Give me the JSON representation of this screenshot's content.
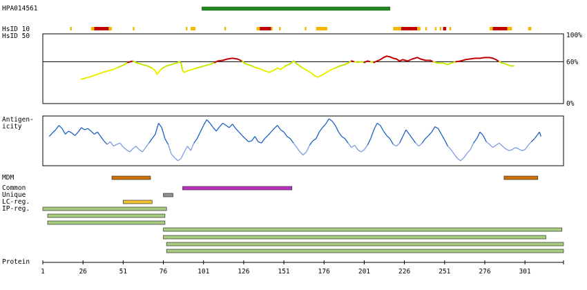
{
  "antibody_id": "HPA014561",
  "labels": {
    "hsid10": "HsID 10",
    "hsid50": "HsID 50",
    "antigenicity_line1": "Antigen-",
    "antigenicity_line2": "icity",
    "mdm": "MDM",
    "common": "Common",
    "unique": "Unique",
    "lc_reg": "LC-reg.",
    "ip_reg": "IP-reg.",
    "protein": "Protein"
  },
  "identity_axis": {
    "top": "100%",
    "mid": "60%",
    "bottom": "0%"
  },
  "protein_axis": {
    "ticks": [
      "1",
      "26",
      "51",
      "76",
      "101",
      "126",
      "151",
      "176",
      "201",
      "226",
      "251",
      "276",
      "301"
    ],
    "tick_positions": [
      1,
      26,
      51,
      76,
      101,
      126,
      151,
      176,
      201,
      226,
      251,
      276,
      301
    ],
    "length": 325
  },
  "colors": {
    "antibody_bar": "#1f8a1f",
    "identity_low": "#e8f000",
    "identity_high": "#c00000",
    "antigenicity": "#1a5fc0",
    "antigenicity_light": "#7a9ae0",
    "mdm": "#d07000",
    "common": "#c030c0",
    "unique": "#909090",
    "lc_reg": "#f0c030",
    "ip_reg": "#a8cc80"
  },
  "antibody_range": [
    100,
    217
  ],
  "hsid10_segments": [
    {
      "start": 18,
      "end": 19,
      "c": "orange"
    },
    {
      "start": 31,
      "end": 33,
      "c": "orange"
    },
    {
      "start": 33,
      "end": 42,
      "c": "red"
    },
    {
      "start": 42,
      "end": 44,
      "c": "orange"
    },
    {
      "start": 57,
      "end": 58,
      "c": "orange"
    },
    {
      "start": 90,
      "end": 91,
      "c": "orange"
    },
    {
      "start": 93,
      "end": 96,
      "c": "orange"
    },
    {
      "start": 114,
      "end": 115,
      "c": "orange"
    },
    {
      "start": 134,
      "end": 136,
      "c": "orange"
    },
    {
      "start": 136,
      "end": 143,
      "c": "red"
    },
    {
      "start": 143,
      "end": 144,
      "c": "orange"
    },
    {
      "start": 148,
      "end": 149,
      "c": "orange"
    },
    {
      "start": 164,
      "end": 165,
      "c": "orange"
    },
    {
      "start": 171,
      "end": 178,
      "c": "orange"
    },
    {
      "start": 219,
      "end": 224,
      "c": "orange"
    },
    {
      "start": 224,
      "end": 234,
      "c": "red"
    },
    {
      "start": 234,
      "end": 236,
      "c": "orange"
    },
    {
      "start": 239,
      "end": 240,
      "c": "orange"
    },
    {
      "start": 245,
      "end": 246,
      "c": "orange"
    },
    {
      "start": 248,
      "end": 249,
      "c": "orange"
    },
    {
      "start": 250,
      "end": 252,
      "c": "red"
    },
    {
      "start": 254,
      "end": 255,
      "c": "orange"
    },
    {
      "start": 279,
      "end": 281,
      "c": "orange"
    },
    {
      "start": 281,
      "end": 290,
      "c": "red"
    },
    {
      "start": 290,
      "end": 293,
      "c": "orange"
    },
    {
      "start": 303,
      "end": 305,
      "c": "orange"
    }
  ],
  "identity_profile": [
    [
      25,
      35
    ],
    [
      30,
      38
    ],
    [
      35,
      42
    ],
    [
      40,
      46
    ],
    [
      45,
      49
    ],
    [
      48,
      52
    ],
    [
      51,
      55
    ],
    [
      54,
      59
    ],
    [
      57,
      61
    ],
    [
      60,
      58
    ],
    [
      63,
      56
    ],
    [
      66,
      54
    ],
    [
      69,
      51
    ],
    [
      71,
      47
    ],
    [
      72,
      42
    ],
    [
      73,
      45
    ],
    [
      75,
      50
    ],
    [
      78,
      54
    ],
    [
      81,
      56
    ],
    [
      84,
      58
    ],
    [
      86,
      60
    ],
    [
      87,
      58
    ],
    [
      88,
      47
    ],
    [
      89,
      45
    ],
    [
      91,
      47
    ],
    [
      94,
      49
    ],
    [
      97,
      51
    ],
    [
      100,
      53
    ],
    [
      103,
      55
    ],
    [
      106,
      57
    ],
    [
      108,
      59
    ],
    [
      110,
      61
    ],
    [
      113,
      62
    ],
    [
      116,
      64
    ],
    [
      119,
      65
    ],
    [
      122,
      64
    ],
    [
      125,
      61
    ],
    [
      127,
      57
    ],
    [
      130,
      55
    ],
    [
      133,
      52
    ],
    [
      136,
      50
    ],
    [
      139,
      47
    ],
    [
      142,
      45
    ],
    [
      145,
      48
    ],
    [
      147,
      51
    ],
    [
      149,
      49
    ],
    [
      152,
      54
    ],
    [
      155,
      57
    ],
    [
      157,
      61
    ],
    [
      159,
      57
    ],
    [
      162,
      52
    ],
    [
      165,
      48
    ],
    [
      168,
      44
    ],
    [
      170,
      40
    ],
    [
      172,
      38
    ],
    [
      174,
      40
    ],
    [
      177,
      44
    ],
    [
      180,
      48
    ],
    [
      183,
      51
    ],
    [
      186,
      54
    ],
    [
      189,
      56
    ],
    [
      191,
      58
    ],
    [
      193,
      61
    ],
    [
      195,
      60
    ],
    [
      197,
      59
    ],
    [
      199,
      60
    ],
    [
      201,
      59
    ],
    [
      203,
      61
    ],
    [
      205,
      60
    ],
    [
      207,
      59
    ],
    [
      209,
      61
    ],
    [
      211,
      63
    ],
    [
      213,
      66
    ],
    [
      215,
      68
    ],
    [
      217,
      67
    ],
    [
      219,
      65
    ],
    [
      221,
      64
    ],
    [
      223,
      61
    ],
    [
      225,
      63
    ],
    [
      228,
      61
    ],
    [
      231,
      64
    ],
    [
      234,
      66
    ],
    [
      236,
      64
    ],
    [
      239,
      62
    ],
    [
      242,
      62
    ],
    [
      244,
      60
    ],
    [
      247,
      58
    ],
    [
      250,
      58
    ],
    [
      253,
      56
    ],
    [
      255,
      58
    ],
    [
      258,
      60
    ],
    [
      261,
      61
    ],
    [
      264,
      63
    ],
    [
      267,
      64
    ],
    [
      270,
      65
    ],
    [
      273,
      65
    ],
    [
      276,
      66
    ],
    [
      279,
      66
    ],
    [
      281,
      65
    ],
    [
      283,
      63
    ],
    [
      285,
      60
    ],
    [
      287,
      58
    ],
    [
      290,
      56
    ],
    [
      292,
      54
    ],
    [
      294,
      54
    ]
  ],
  "antigenicity_profile": [
    [
      5,
      0.6
    ],
    [
      7,
      0.68
    ],
    [
      9,
      0.75
    ],
    [
      11,
      0.85
    ],
    [
      13,
      0.78
    ],
    [
      15,
      0.65
    ],
    [
      17,
      0.72
    ],
    [
      19,
      0.68
    ],
    [
      21,
      0.62
    ],
    [
      23,
      0.7
    ],
    [
      25,
      0.8
    ],
    [
      27,
      0.75
    ],
    [
      29,
      0.78
    ],
    [
      31,
      0.72
    ],
    [
      33,
      0.65
    ],
    [
      35,
      0.7
    ],
    [
      37,
      0.6
    ],
    [
      39,
      0.5
    ],
    [
      41,
      0.42
    ],
    [
      43,
      0.48
    ],
    [
      45,
      0.38
    ],
    [
      47,
      0.42
    ],
    [
      49,
      0.45
    ],
    [
      51,
      0.36
    ],
    [
      53,
      0.3
    ],
    [
      55,
      0.25
    ],
    [
      57,
      0.32
    ],
    [
      59,
      0.38
    ],
    [
      61,
      0.3
    ],
    [
      63,
      0.25
    ],
    [
      65,
      0.35
    ],
    [
      67,
      0.45
    ],
    [
      69,
      0.55
    ],
    [
      71,
      0.65
    ],
    [
      73,
      0.9
    ],
    [
      75,
      0.8
    ],
    [
      77,
      0.55
    ],
    [
      79,
      0.42
    ],
    [
      81,
      0.2
    ],
    [
      83,
      0.12
    ],
    [
      85,
      0.05
    ],
    [
      87,
      0.1
    ],
    [
      89,
      0.25
    ],
    [
      91,
      0.38
    ],
    [
      93,
      0.28
    ],
    [
      95,
      0.45
    ],
    [
      97,
      0.55
    ],
    [
      99,
      0.7
    ],
    [
      101,
      0.85
    ],
    [
      103,
      0.98
    ],
    [
      105,
      0.9
    ],
    [
      107,
      0.8
    ],
    [
      109,
      0.72
    ],
    [
      111,
      0.82
    ],
    [
      113,
      0.9
    ],
    [
      115,
      0.85
    ],
    [
      117,
      0.8
    ],
    [
      119,
      0.88
    ],
    [
      121,
      0.78
    ],
    [
      123,
      0.7
    ],
    [
      125,
      0.62
    ],
    [
      127,
      0.55
    ],
    [
      129,
      0.48
    ],
    [
      131,
      0.5
    ],
    [
      133,
      0.6
    ],
    [
      135,
      0.48
    ],
    [
      137,
      0.45
    ],
    [
      139,
      0.55
    ],
    [
      141,
      0.62
    ],
    [
      143,
      0.7
    ],
    [
      145,
      0.78
    ],
    [
      147,
      0.85
    ],
    [
      149,
      0.75
    ],
    [
      151,
      0.7
    ],
    [
      153,
      0.6
    ],
    [
      155,
      0.55
    ],
    [
      157,
      0.45
    ],
    [
      159,
      0.35
    ],
    [
      161,
      0.25
    ],
    [
      163,
      0.18
    ],
    [
      165,
      0.25
    ],
    [
      167,
      0.4
    ],
    [
      169,
      0.5
    ],
    [
      171,
      0.55
    ],
    [
      173,
      0.7
    ],
    [
      175,
      0.8
    ],
    [
      177,
      0.88
    ],
    [
      179,
      1.0
    ],
    [
      181,
      0.95
    ],
    [
      183,
      0.85
    ],
    [
      185,
      0.7
    ],
    [
      187,
      0.6
    ],
    [
      189,
      0.55
    ],
    [
      191,
      0.45
    ],
    [
      193,
      0.35
    ],
    [
      195,
      0.4
    ],
    [
      197,
      0.3
    ],
    [
      199,
      0.25
    ],
    [
      201,
      0.3
    ],
    [
      203,
      0.4
    ],
    [
      205,
      0.55
    ],
    [
      207,
      0.75
    ],
    [
      209,
      0.9
    ],
    [
      211,
      0.85
    ],
    [
      213,
      0.72
    ],
    [
      215,
      0.62
    ],
    [
      217,
      0.55
    ],
    [
      219,
      0.42
    ],
    [
      221,
      0.38
    ],
    [
      223,
      0.45
    ],
    [
      225,
      0.6
    ],
    [
      227,
      0.75
    ],
    [
      229,
      0.65
    ],
    [
      231,
      0.55
    ],
    [
      233,
      0.45
    ],
    [
      235,
      0.38
    ],
    [
      237,
      0.45
    ],
    [
      239,
      0.55
    ],
    [
      241,
      0.62
    ],
    [
      243,
      0.7
    ],
    [
      245,
      0.82
    ],
    [
      247,
      0.78
    ],
    [
      249,
      0.65
    ],
    [
      251,
      0.52
    ],
    [
      253,
      0.38
    ],
    [
      255,
      0.3
    ],
    [
      257,
      0.2
    ],
    [
      259,
      0.1
    ],
    [
      261,
      0.05
    ],
    [
      263,
      0.12
    ],
    [
      265,
      0.22
    ],
    [
      267,
      0.3
    ],
    [
      269,
      0.45
    ],
    [
      271,
      0.55
    ],
    [
      273,
      0.7
    ],
    [
      275,
      0.62
    ],
    [
      277,
      0.48
    ],
    [
      279,
      0.42
    ],
    [
      281,
      0.35
    ],
    [
      283,
      0.4
    ],
    [
      285,
      0.45
    ],
    [
      287,
      0.38
    ],
    [
      289,
      0.32
    ],
    [
      291,
      0.28
    ],
    [
      293,
      0.3
    ],
    [
      295,
      0.35
    ],
    [
      297,
      0.32
    ],
    [
      299,
      0.28
    ],
    [
      301,
      0.3
    ],
    [
      303,
      0.4
    ],
    [
      305,
      0.48
    ],
    [
      307,
      0.55
    ],
    [
      309,
      0.65
    ],
    [
      310,
      0.7
    ],
    [
      311,
      0.6
    ]
  ],
  "tracks": [
    {
      "name": "mdm",
      "row": 0,
      "segments": [
        [
          44,
          68
        ],
        [
          288,
          309
        ]
      ],
      "color": "#d07000"
    },
    {
      "name": "common",
      "row": 1,
      "segments": [
        [
          88,
          156
        ]
      ],
      "color": "#c030c0"
    },
    {
      "name": "unique",
      "row": 2,
      "segments": [
        [
          76,
          82
        ]
      ],
      "color": "#909090"
    },
    {
      "name": "lc_reg",
      "row": 3,
      "segments": [
        [
          51,
          69
        ]
      ],
      "color": "#f0c030"
    },
    {
      "name": "ip_reg",
      "row": 4,
      "segments": [
        [
          1,
          78
        ]
      ],
      "color": "#a8cc80"
    },
    {
      "name": "ip_reg",
      "row": 5,
      "segments": [
        [
          4,
          77
        ]
      ],
      "color": "#a8cc80"
    },
    {
      "name": "ip_reg",
      "row": 6,
      "segments": [
        [
          4,
          77
        ]
      ],
      "color": "#a8cc80"
    },
    {
      "name": "ip_reg",
      "row": 7,
      "segments": [
        [
          76,
          324
        ]
      ],
      "color": "#a8cc80"
    },
    {
      "name": "ip_reg",
      "row": 8,
      "segments": [
        [
          76,
          314
        ]
      ],
      "color": "#a8cc80"
    },
    {
      "name": "ip_reg",
      "row": 9,
      "segments": [
        [
          78,
          325
        ]
      ],
      "color": "#a8cc80"
    },
    {
      "name": "ip_reg",
      "row": 10,
      "segments": [
        [
          78,
          325
        ]
      ],
      "color": "#a8cc80"
    }
  ]
}
